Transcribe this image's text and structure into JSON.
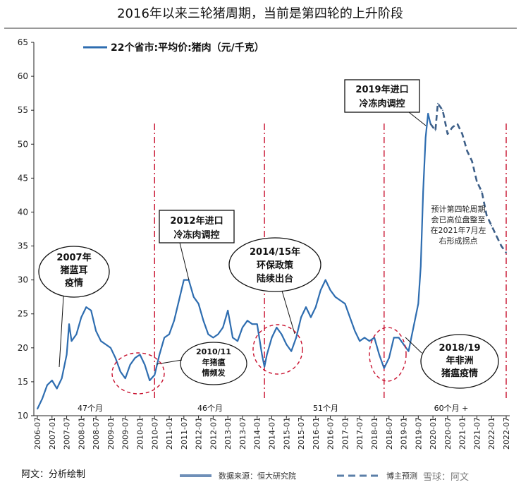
{
  "title": "2016年以来三轮猪周期，当前是第四轮的上升阶段",
  "chart_data": {
    "type": "line",
    "ylim": [
      10,
      65
    ],
    "yticks": [
      10,
      15,
      20,
      25,
      30,
      35,
      40,
      45,
      50,
      55,
      60,
      65
    ],
    "x_ticks": [
      "2006-07",
      "2007-01",
      "2007-07",
      "2008-01",
      "2008-07",
      "2009-01",
      "2009-07",
      "2010-01",
      "2010-07",
      "2011-01",
      "2011-07",
      "2012-01",
      "2012-07",
      "2013-01",
      "2013-07",
      "2014-01",
      "2014-07",
      "2015-01",
      "2015-07",
      "2016-01",
      "2016-07",
      "2017-01",
      "2017-07",
      "2018-01",
      "2018-07",
      "2019-01",
      "2019-07",
      "2020-01",
      "2020-07",
      "2021-01",
      "2021-07",
      "2022-01",
      "2022-07"
    ],
    "legend_placement": "top-left",
    "series": [
      {
        "name": "22个省市:平均价:猪肉（元/千克）",
        "style": "solid",
        "color": "#2e6db0",
        "points": [
          [
            "2006-07",
            11.0
          ],
          [
            "2006-09",
            12.5
          ],
          [
            "2006-11",
            14.5
          ],
          [
            "2007-01",
            15.2
          ],
          [
            "2007-03",
            14.0
          ],
          [
            "2007-05",
            15.5
          ],
          [
            "2007-07",
            19.0
          ],
          [
            "2007-08",
            23.5
          ],
          [
            "2007-09",
            21.0
          ],
          [
            "2007-11",
            22.0
          ],
          [
            "2008-01",
            24.5
          ],
          [
            "2008-03",
            26.0
          ],
          [
            "2008-05",
            25.5
          ],
          [
            "2008-07",
            22.5
          ],
          [
            "2008-09",
            21.0
          ],
          [
            "2008-11",
            20.5
          ],
          [
            "2009-01",
            20.0
          ],
          [
            "2009-03",
            18.5
          ],
          [
            "2009-05",
            16.5
          ],
          [
            "2009-07",
            15.5
          ],
          [
            "2009-09",
            17.5
          ],
          [
            "2009-11",
            18.5
          ],
          [
            "2010-01",
            19.0
          ],
          [
            "2010-03",
            17.5
          ],
          [
            "2010-05",
            15.2
          ],
          [
            "2010-07",
            16.0
          ],
          [
            "2010-09",
            19.0
          ],
          [
            "2010-11",
            21.5
          ],
          [
            "2011-01",
            22.0
          ],
          [
            "2011-03",
            24.0
          ],
          [
            "2011-05",
            27.0
          ],
          [
            "2011-07",
            30.0
          ],
          [
            "2011-09",
            30.0
          ],
          [
            "2011-11",
            27.5
          ],
          [
            "2012-01",
            26.5
          ],
          [
            "2012-03",
            24.0
          ],
          [
            "2012-05",
            22.0
          ],
          [
            "2012-07",
            21.5
          ],
          [
            "2012-09",
            22.0
          ],
          [
            "2012-11",
            23.0
          ],
          [
            "2013-01",
            25.5
          ],
          [
            "2013-03",
            21.5
          ],
          [
            "2013-05",
            21.0
          ],
          [
            "2013-07",
            23.0
          ],
          [
            "2013-09",
            24.0
          ],
          [
            "2013-11",
            23.5
          ],
          [
            "2014-01",
            23.5
          ],
          [
            "2014-03",
            19.0
          ],
          [
            "2014-04",
            17.2
          ],
          [
            "2014-05",
            19.0
          ],
          [
            "2014-07",
            21.5
          ],
          [
            "2014-09",
            23.0
          ],
          [
            "2014-11",
            22.0
          ],
          [
            "2015-01",
            20.5
          ],
          [
            "2015-03",
            19.5
          ],
          [
            "2015-05",
            21.5
          ],
          [
            "2015-07",
            24.5
          ],
          [
            "2015-09",
            26.0
          ],
          [
            "2015-11",
            24.5
          ],
          [
            "2016-01",
            26.0
          ],
          [
            "2016-03",
            28.5
          ],
          [
            "2016-05",
            30.0
          ],
          [
            "2016-07",
            28.5
          ],
          [
            "2016-09",
            27.5
          ],
          [
            "2016-11",
            27.0
          ],
          [
            "2017-01",
            26.5
          ],
          [
            "2017-03",
            24.5
          ],
          [
            "2017-05",
            22.5
          ],
          [
            "2017-07",
            21.0
          ],
          [
            "2017-09",
            21.5
          ],
          [
            "2017-11",
            21.0
          ],
          [
            "2018-01",
            21.5
          ],
          [
            "2018-03",
            19.0
          ],
          [
            "2018-05",
            17.0
          ],
          [
            "2018-07",
            18.5
          ],
          [
            "2018-09",
            21.5
          ],
          [
            "2018-11",
            21.5
          ],
          [
            "2019-01",
            20.5
          ],
          [
            "2019-03",
            19.5
          ],
          [
            "2019-05",
            23.0
          ],
          [
            "2019-07",
            26.5
          ],
          [
            "2019-08",
            32.0
          ],
          [
            "2019-09",
            43.0
          ],
          [
            "2019-10",
            51.0
          ],
          [
            "2019-11",
            54.5
          ],
          [
            "2019-12",
            53.0
          ]
        ]
      },
      {
        "name": "博主预测",
        "style": "dashed",
        "color": "#3d5f88",
        "points": [
          [
            "2019-12",
            53.0
          ],
          [
            "2020-02",
            52.0
          ],
          [
            "2020-03",
            56.0
          ],
          [
            "2020-05",
            55.0
          ],
          [
            "2020-07",
            51.5
          ],
          [
            "2020-09",
            52.5
          ],
          [
            "2020-11",
            53.0
          ],
          [
            "2021-01",
            51.5
          ],
          [
            "2021-03",
            49.0
          ],
          [
            "2021-05",
            47.5
          ],
          [
            "2021-07",
            44.5
          ],
          [
            "2021-09",
            43.0
          ],
          [
            "2021-11",
            39.5
          ],
          [
            "2022-01",
            38.0
          ],
          [
            "2022-03",
            36.5
          ],
          [
            "2022-05",
            35.0
          ],
          [
            "2022-07",
            34.0
          ]
        ]
      }
    ]
  },
  "annotations": {
    "a2007": [
      "2007年",
      "猪蓝耳",
      "疫情"
    ],
    "a2012": [
      "2012年进口",
      "冷冻肉调控"
    ],
    "a2019": [
      "2019年进口",
      "冷冻肉调控"
    ],
    "a2014": [
      "2014/15年",
      "环保政策",
      "陆续出台"
    ],
    "a2010": [
      "2010/11",
      "年猪瘟",
      "情频发"
    ],
    "a2018": [
      "2018/19",
      "年非洲",
      "猪瘟疫情"
    ],
    "forecast_note": [
      "预计第四轮周期",
      "会已高位盘整至",
      "在2021年7月左",
      "右形成拐点"
    ]
  },
  "cycle_months": [
    "47个月",
    "46个月",
    "51个月",
    "60个月 +"
  ],
  "footer": {
    "left": "阿文：分析绘制",
    "source": "数据来源：恒大研究院",
    "forecast_legend": "博主预测",
    "watermark": "雪球：阿文"
  }
}
